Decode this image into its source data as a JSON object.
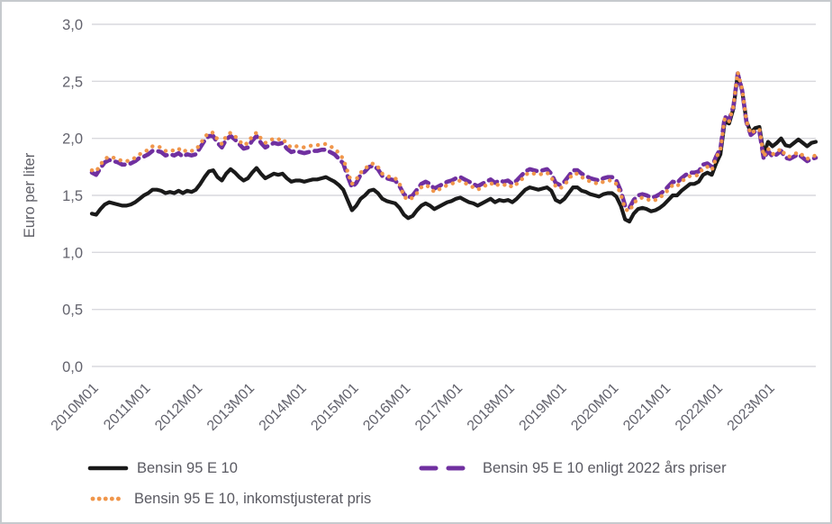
{
  "chart_data": {
    "type": "line",
    "title": "",
    "ylabel": "Euro per liter",
    "ylim": [
      0.0,
      3.0
    ],
    "ytick_step": 0.5,
    "ytick_labels": [
      "3,0",
      "2,5",
      "2,0",
      "1,5",
      "1,0",
      "0,5",
      "0,0"
    ],
    "xtick_labels": [
      "2010M01",
      "2011M01",
      "2012M01",
      "2013M01",
      "2014M01",
      "2015M01",
      "2016M01",
      "2017M01",
      "2018M01",
      "2019M01",
      "2020M01",
      "2021M01",
      "2022M01",
      "2023M01"
    ],
    "x_start": "2010M01",
    "x_end": "2023M12",
    "points_per_year": 12,
    "grid": "horizontal",
    "gridline_color": "#d9d9de",
    "legend_position": "bottom",
    "series": [
      {
        "name": "Bensin 95 E 10",
        "color": "#1a1a1a",
        "style": "solid",
        "values": [
          1.34,
          1.33,
          1.38,
          1.42,
          1.44,
          1.43,
          1.42,
          1.41,
          1.41,
          1.42,
          1.44,
          1.47,
          1.5,
          1.52,
          1.55,
          1.55,
          1.54,
          1.52,
          1.53,
          1.52,
          1.54,
          1.52,
          1.54,
          1.53,
          1.55,
          1.6,
          1.66,
          1.71,
          1.72,
          1.66,
          1.63,
          1.69,
          1.73,
          1.7,
          1.66,
          1.63,
          1.65,
          1.7,
          1.74,
          1.69,
          1.65,
          1.67,
          1.69,
          1.68,
          1.69,
          1.65,
          1.62,
          1.63,
          1.63,
          1.62,
          1.63,
          1.64,
          1.64,
          1.65,
          1.66,
          1.64,
          1.62,
          1.59,
          1.55,
          1.46,
          1.37,
          1.41,
          1.47,
          1.5,
          1.54,
          1.55,
          1.52,
          1.47,
          1.45,
          1.44,
          1.43,
          1.39,
          1.33,
          1.3,
          1.32,
          1.37,
          1.41,
          1.43,
          1.41,
          1.38,
          1.4,
          1.42,
          1.44,
          1.45,
          1.47,
          1.48,
          1.46,
          1.44,
          1.43,
          1.41,
          1.43,
          1.45,
          1.47,
          1.44,
          1.46,
          1.45,
          1.46,
          1.44,
          1.47,
          1.51,
          1.55,
          1.57,
          1.56,
          1.55,
          1.56,
          1.57,
          1.54,
          1.46,
          1.44,
          1.47,
          1.52,
          1.57,
          1.57,
          1.54,
          1.53,
          1.51,
          1.5,
          1.49,
          1.51,
          1.52,
          1.52,
          1.49,
          1.41,
          1.29,
          1.27,
          1.34,
          1.38,
          1.39,
          1.38,
          1.36,
          1.37,
          1.39,
          1.42,
          1.46,
          1.5,
          1.5,
          1.54,
          1.57,
          1.6,
          1.6,
          1.62,
          1.68,
          1.7,
          1.68,
          1.78,
          1.86,
          2.15,
          2.13,
          2.26,
          2.56,
          2.42,
          2.15,
          2.05,
          2.09,
          2.1,
          1.86,
          1.97,
          1.93,
          1.96,
          2.0,
          1.94,
          1.93,
          1.96,
          1.99,
          1.96,
          1.93,
          1.96,
          1.97
        ]
      },
      {
        "name": "Bensin 95 E 10 enligt 2022 års priser",
        "color": "#7030a0",
        "style": "dashed",
        "values": [
          1.7,
          1.68,
          1.74,
          1.79,
          1.81,
          1.8,
          1.79,
          1.77,
          1.77,
          1.78,
          1.8,
          1.83,
          1.84,
          1.86,
          1.89,
          1.89,
          1.88,
          1.85,
          1.86,
          1.85,
          1.87,
          1.84,
          1.86,
          1.85,
          1.86,
          1.92,
          1.98,
          2.02,
          2.02,
          1.96,
          1.92,
          1.99,
          2.02,
          1.99,
          1.95,
          1.91,
          1.92,
          1.98,
          2.02,
          1.96,
          1.92,
          1.94,
          1.96,
          1.95,
          1.96,
          1.91,
          1.88,
          1.89,
          1.88,
          1.87,
          1.88,
          1.89,
          1.89,
          1.9,
          1.9,
          1.88,
          1.86,
          1.82,
          1.78,
          1.67,
          1.57,
          1.61,
          1.68,
          1.71,
          1.75,
          1.76,
          1.73,
          1.67,
          1.65,
          1.64,
          1.63,
          1.58,
          1.51,
          1.48,
          1.5,
          1.55,
          1.6,
          1.62,
          1.6,
          1.56,
          1.58,
          1.6,
          1.62,
          1.63,
          1.65,
          1.66,
          1.64,
          1.62,
          1.6,
          1.58,
          1.6,
          1.62,
          1.64,
          1.61,
          1.63,
          1.62,
          1.63,
          1.6,
          1.63,
          1.67,
          1.71,
          1.73,
          1.72,
          1.71,
          1.72,
          1.73,
          1.69,
          1.61,
          1.59,
          1.62,
          1.67,
          1.72,
          1.72,
          1.69,
          1.67,
          1.65,
          1.64,
          1.63,
          1.65,
          1.66,
          1.66,
          1.63,
          1.54,
          1.41,
          1.39,
          1.46,
          1.5,
          1.51,
          1.5,
          1.48,
          1.49,
          1.51,
          1.54,
          1.58,
          1.62,
          1.61,
          1.65,
          1.68,
          1.7,
          1.7,
          1.71,
          1.77,
          1.78,
          1.75,
          1.84,
          1.91,
          2.19,
          2.16,
          2.28,
          2.57,
          2.42,
          2.14,
          2.03,
          2.06,
          2.06,
          1.82,
          1.89,
          1.84,
          1.86,
          1.89,
          1.83,
          1.82,
          1.84,
          1.86,
          1.83,
          1.8,
          1.82,
          1.83
        ]
      },
      {
        "name": "Bensin 95 E 10, inkomstjusterat pris",
        "color": "#f0964b",
        "style": "dotted",
        "values": [
          1.72,
          1.71,
          1.77,
          1.82,
          1.84,
          1.83,
          1.82,
          1.8,
          1.8,
          1.81,
          1.83,
          1.86,
          1.88,
          1.9,
          1.93,
          1.93,
          1.92,
          1.89,
          1.9,
          1.89,
          1.91,
          1.88,
          1.9,
          1.89,
          1.9,
          1.95,
          2.01,
          2.05,
          2.05,
          1.99,
          1.95,
          2.02,
          2.05,
          2.02,
          1.98,
          1.94,
          1.96,
          2.02,
          2.05,
          2.0,
          1.96,
          1.98,
          2.0,
          1.99,
          2.0,
          1.95,
          1.92,
          1.93,
          1.93,
          1.92,
          1.93,
          1.94,
          1.94,
          1.95,
          1.95,
          1.93,
          1.91,
          1.87,
          1.82,
          1.71,
          1.6,
          1.64,
          1.7,
          1.73,
          1.77,
          1.78,
          1.75,
          1.69,
          1.67,
          1.66,
          1.65,
          1.6,
          1.49,
          1.46,
          1.48,
          1.52,
          1.57,
          1.59,
          1.57,
          1.53,
          1.55,
          1.57,
          1.59,
          1.6,
          1.62,
          1.63,
          1.61,
          1.59,
          1.57,
          1.55,
          1.57,
          1.59,
          1.61,
          1.58,
          1.6,
          1.59,
          1.6,
          1.57,
          1.6,
          1.63,
          1.68,
          1.7,
          1.69,
          1.68,
          1.69,
          1.7,
          1.66,
          1.58,
          1.56,
          1.59,
          1.64,
          1.69,
          1.69,
          1.66,
          1.64,
          1.62,
          1.61,
          1.6,
          1.62,
          1.63,
          1.63,
          1.6,
          1.51,
          1.38,
          1.36,
          1.43,
          1.47,
          1.48,
          1.47,
          1.45,
          1.46,
          1.48,
          1.51,
          1.55,
          1.59,
          1.58,
          1.62,
          1.65,
          1.67,
          1.67,
          1.68,
          1.74,
          1.75,
          1.72,
          1.83,
          1.9,
          2.18,
          2.15,
          2.28,
          2.58,
          2.43,
          2.15,
          2.04,
          2.07,
          2.08,
          1.84,
          1.91,
          1.86,
          1.88,
          1.91,
          1.85,
          1.84,
          1.86,
          1.88,
          1.85,
          1.82,
          1.84,
          1.85
        ]
      }
    ]
  }
}
